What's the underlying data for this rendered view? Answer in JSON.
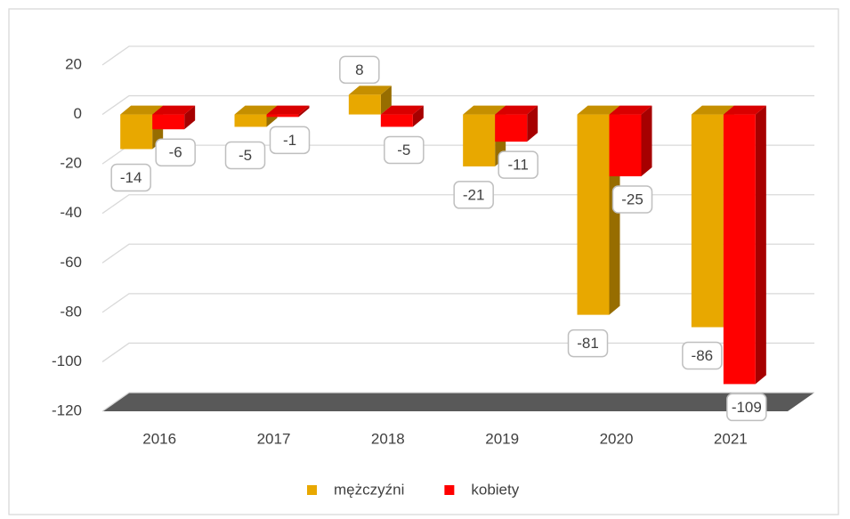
{
  "chart_data": {
    "type": "bar3d",
    "categories": [
      "2016",
      "2017",
      "2018",
      "2019",
      "2020",
      "2021"
    ],
    "series": [
      {
        "name": "mężczyźni",
        "color": "#e8a800",
        "values": [
          -14,
          -5,
          8,
          -21,
          -81,
          -86
        ]
      },
      {
        "name": "kobiety",
        "color": "#ff0000",
        "values": [
          -6,
          -1,
          -5,
          -11,
          -25,
          -109
        ]
      }
    ],
    "ylim": [
      -120,
      20
    ],
    "yticks": [
      -120,
      -100,
      -80,
      -60,
      -40,
      -20,
      0,
      20
    ],
    "grid": true,
    "legend": "bottom"
  }
}
